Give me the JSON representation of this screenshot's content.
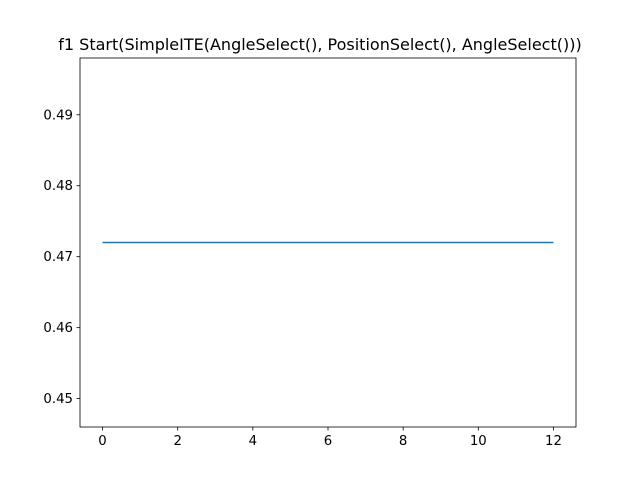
{
  "chart_data": {
    "type": "line",
    "title": "f1 Start(SimpleITE(AngleSelect(), PositionSelect(), AngleSelect()))",
    "xlabel": "",
    "ylabel": "",
    "xlim": [
      -0.6,
      12.6
    ],
    "ylim": [
      0.446,
      0.498
    ],
    "xticks": [
      0,
      2,
      4,
      6,
      8,
      10,
      12
    ],
    "yticks": [
      0.45,
      0.46,
      0.47,
      0.48,
      0.49
    ],
    "grid": false,
    "series": [
      {
        "color": "#1f77b4",
        "x": [
          0,
          1,
          2,
          3,
          4,
          5,
          6,
          7,
          8,
          9,
          10,
          11,
          12
        ],
        "y": [
          0.472,
          0.472,
          0.472,
          0.472,
          0.472,
          0.472,
          0.472,
          0.472,
          0.472,
          0.472,
          0.472,
          0.472,
          0.472
        ]
      }
    ]
  }
}
